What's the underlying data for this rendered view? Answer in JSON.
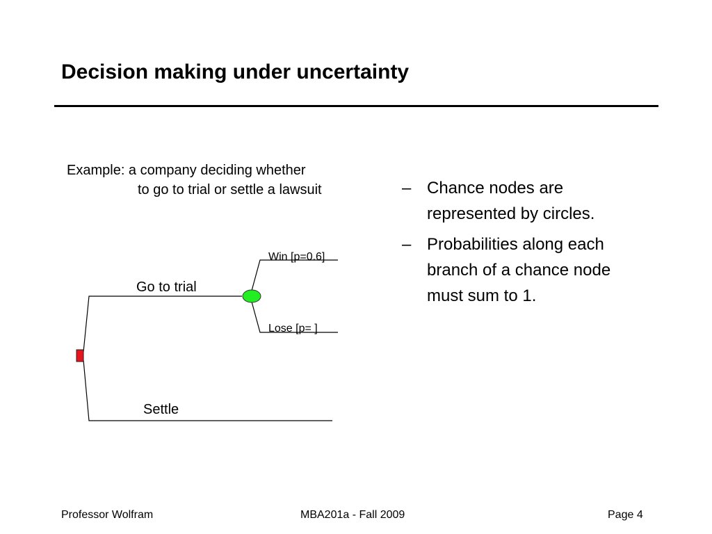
{
  "slide": {
    "title": "Decision making under uncertainty"
  },
  "example": {
    "line1": "Example: a company deciding whether",
    "line2": "to go to trial or settle a lawsuit"
  },
  "bullets": [
    {
      "marker": "–",
      "lines": [
        "Chance nodes are",
        "represented by circles."
      ]
    },
    {
      "marker": "–",
      "lines": [
        "Probabilities along each",
        "branch of a chance node",
        "must sum to 1."
      ]
    }
  ],
  "tree": {
    "decision_node_color": "#e8141c",
    "chance_node_color": "#22ee22",
    "branches": {
      "trial": "Go to trial",
      "settle": "Settle",
      "win": "Win [p=0.6]",
      "lose": "Lose [p=  ]"
    }
  },
  "footer": {
    "left": "Professor Wolfram",
    "center": "MBA201a - Fall 2009",
    "right": "Page 4"
  }
}
